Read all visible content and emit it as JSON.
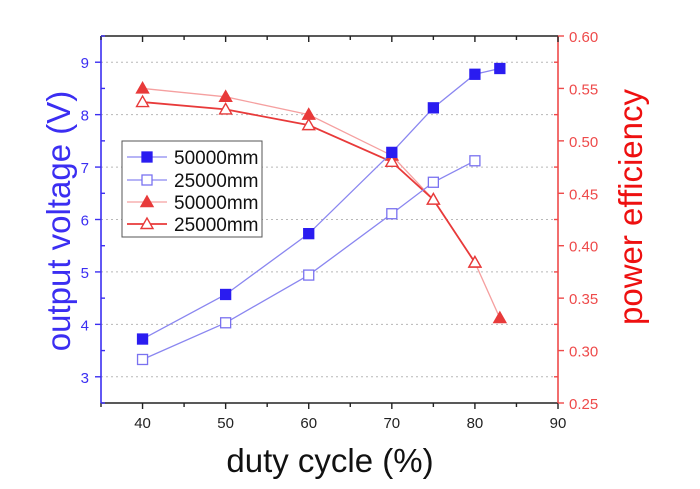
{
  "chart_data": {
    "type": "line",
    "title": "",
    "xlabel": "duty cycle (%)",
    "ylabel": "output voltage (V)",
    "y2label": "power efficiency",
    "xlim": [
      35,
      90
    ],
    "ylim": [
      2.5,
      9.5
    ],
    "y2lim": [
      0.25,
      0.6
    ],
    "xticks": [
      40,
      50,
      60,
      70,
      80,
      90
    ],
    "xtick_labels": [
      "40",
      "50",
      "60",
      "70",
      "80",
      "90"
    ],
    "yticks": [
      3,
      4,
      5,
      6,
      7,
      8,
      9
    ],
    "ytick_labels": [
      "3",
      "4",
      "5",
      "6",
      "7",
      "8",
      "9"
    ],
    "y2ticks": [
      0.25,
      0.3,
      0.35,
      0.4,
      0.45,
      0.5,
      0.55,
      0.6
    ],
    "y2tick_labels": [
      "0.25",
      "0.30",
      "0.35",
      "0.40",
      "0.45",
      "0.50",
      "0.55",
      "0.60"
    ],
    "grid": true,
    "grid_style": "dotted horizontal at left-axis major ticks",
    "legend_position": "center-left",
    "colors": {
      "left_axis": "#3b2ef2",
      "left_series_line": "#8a86f0",
      "right_axis": "#ee4a4a",
      "right_title": "#ee1010",
      "red_filled_line": "#f59a9a",
      "red_open_line": "#e83a3a",
      "red_marker": "#e83a3a",
      "grid": "#b8b8b8",
      "frame": "#222222"
    },
    "series": [
      {
        "name": "50000mm",
        "axis": "left",
        "marker": "square-filled",
        "color": "#2a1cf0",
        "line_color": "#8a86f0",
        "x": [
          40,
          50,
          60,
          70,
          75,
          80,
          83
        ],
        "y": [
          3.72,
          4.57,
          5.73,
          7.28,
          8.13,
          8.77,
          8.88
        ]
      },
      {
        "name": "25000mm",
        "axis": "left",
        "marker": "square-open",
        "color": "#7a72f0",
        "line_color": "#8a86f0",
        "x": [
          40,
          50,
          60,
          70,
          75,
          80
        ],
        "y": [
          3.33,
          4.03,
          4.94,
          6.11,
          6.71,
          7.12
        ]
      },
      {
        "name": "50000mm",
        "axis": "right",
        "marker": "triangle-filled",
        "color": "#e83a3a",
        "line_color": "#f5a0a0",
        "x": [
          40,
          50,
          60,
          70,
          75,
          80,
          83
        ],
        "y": [
          0.55,
          0.542,
          0.525,
          0.486,
          0.444,
          0.384,
          0.331
        ]
      },
      {
        "name": "25000mm",
        "axis": "right",
        "marker": "triangle-open",
        "color": "#e83a3a",
        "line_color": "#e83a3a",
        "x": [
          40,
          50,
          60,
          70,
          75,
          80
        ],
        "y": [
          0.537,
          0.53,
          0.515,
          0.48,
          0.444,
          0.384
        ]
      }
    ]
  }
}
